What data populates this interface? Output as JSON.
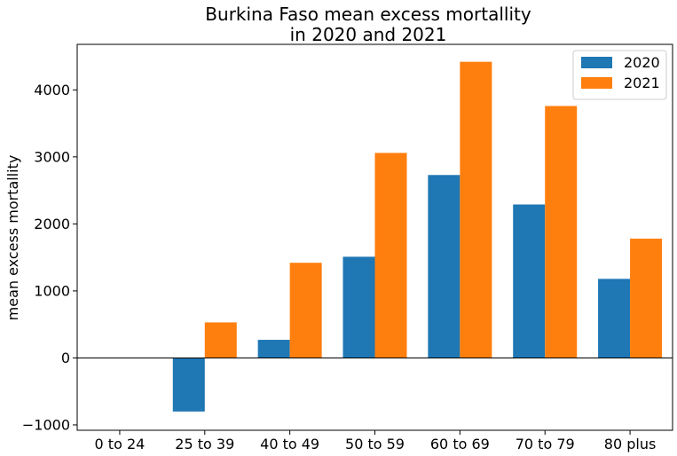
{
  "chart_data": {
    "type": "bar",
    "title_lines": [
      "Burkina Faso mean excess mortallity",
      "in 2020 and 2021"
    ],
    "xlabel": "",
    "ylabel": "mean excess mortallity",
    "categories": [
      "0 to 24",
      "25 to 39",
      "40 to 49",
      "50 to 59",
      "60 to 69",
      "70 to 79",
      "80 plus"
    ],
    "series": [
      {
        "name": "2020",
        "color": "#1f77b4",
        "values": [
          0,
          -800,
          270,
          1510,
          2730,
          2290,
          1180
        ]
      },
      {
        "name": "2021",
        "color": "#ff7f0e",
        "values": [
          0,
          530,
          1420,
          3060,
          4420,
          3760,
          1780
        ]
      }
    ],
    "ylim": [
      -1080,
      4680
    ],
    "yticks": [
      -1000,
      0,
      1000,
      2000,
      3000,
      4000
    ],
    "ytick_labels": [
      "−1000",
      "0",
      "1000",
      "2000",
      "3000",
      "4000"
    ],
    "grid": false,
    "legend_position": "top-right",
    "zero_line": true
  }
}
